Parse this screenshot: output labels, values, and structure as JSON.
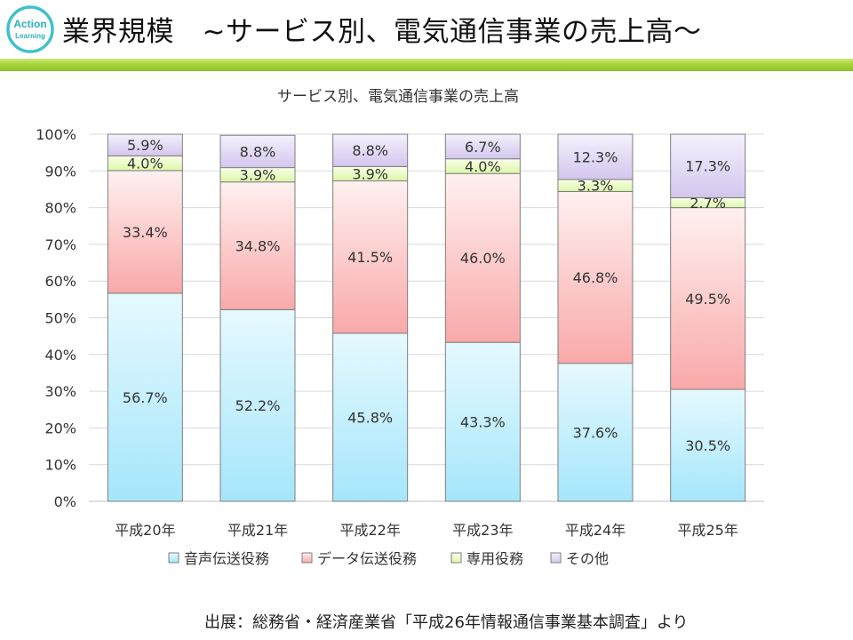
{
  "logo": {
    "line1": "Action",
    "line2": "Learning"
  },
  "header": {
    "title": "業界規模　~サービス別、電気通信事業の売上高〜"
  },
  "source": "出展：総務省・経済産業省「平成26年情報通信事業基本調査」より",
  "chart_data": {
    "type": "bar",
    "stacked": true,
    "title": "サービス別、電気通信事業の売上高",
    "xlabel": "",
    "ylabel": "",
    "ylim": [
      0,
      100
    ],
    "yticks": [
      "0%",
      "10%",
      "20%",
      "30%",
      "40%",
      "50%",
      "60%",
      "70%",
      "80%",
      "90%",
      "100%"
    ],
    "categories": [
      "平成20年",
      "平成21年",
      "平成22年",
      "平成23年",
      "平成24年",
      "平成25年"
    ],
    "series": [
      {
        "name": "音声伝送役務",
        "values": [
          56.7,
          52.2,
          45.8,
          43.3,
          37.6,
          30.5
        ],
        "labels": [
          "56.7%",
          "52.2%",
          "45.8%",
          "43.3%",
          "37.6%",
          "30.5%"
        ],
        "color": "#bfefff"
      },
      {
        "name": "データ伝送役務",
        "values": [
          33.4,
          34.8,
          41.5,
          46.0,
          46.8,
          49.5
        ],
        "labels": [
          "33.4%",
          "34.8%",
          "41.5%",
          "46.0%",
          "46.8%",
          "49.5%"
        ],
        "color": "#ffc6c6"
      },
      {
        "name": "専用役務",
        "values": [
          4.0,
          3.9,
          3.9,
          4.0,
          3.3,
          2.7
        ],
        "labels": [
          "4.0%",
          "3.9%",
          "3.9%",
          "4.0%",
          "3.3%",
          "2.7%"
        ],
        "color": "#ecfcc8"
      },
      {
        "name": "その他",
        "values": [
          5.9,
          8.8,
          8.8,
          6.7,
          12.3,
          17.3
        ],
        "labels": [
          "5.9%",
          "8.8%",
          "8.8%",
          "6.7%",
          "12.3%",
          "17.3%"
        ],
        "color": "#e4daf5"
      }
    ],
    "legend": "bottom",
    "grid": true
  }
}
